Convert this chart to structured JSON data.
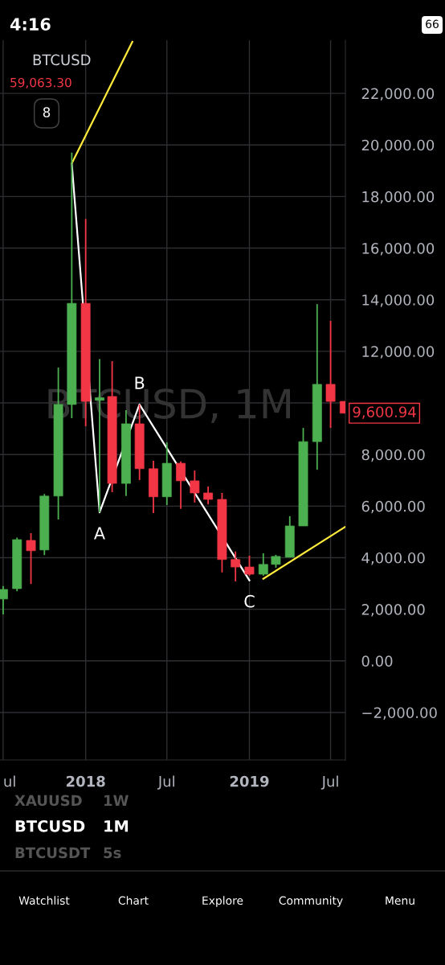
{
  "chart_data": {
    "type": "candlestick",
    "title": "BTCUSD",
    "subtitle": "59,063.30",
    "x": [
      "2017-07",
      "2017-08",
      "2017-09",
      "2017-10",
      "2017-11",
      "2017-12",
      "2018-01",
      "2018-02",
      "2018-03",
      "2018-04",
      "2018-05",
      "2018-06",
      "2018-07",
      "2018-08",
      "2018-09",
      "2018-10",
      "2018-11",
      "2018-12",
      "2019-01",
      "2019-02",
      "2019-03",
      "2019-04",
      "2019-05",
      "2019-06",
      "2019-07",
      "2019-08"
    ],
    "ohlc": [
      [
        2400,
        2900,
        1800,
        2770
      ],
      [
        2800,
        4780,
        2700,
        4700
      ],
      [
        4670,
        4950,
        2980,
        4270
      ],
      [
        4300,
        6470,
        4100,
        6390
      ],
      [
        6390,
        11370,
        5480,
        9940
      ],
      [
        9940,
        19700,
        9410,
        13860
      ],
      [
        13860,
        17130,
        9100,
        10060
      ],
      [
        10100,
        11700,
        5760,
        10200
      ],
      [
        10250,
        11620,
        6540,
        6880
      ],
      [
        6880,
        9720,
        6390,
        9190
      ],
      [
        9190,
        9940,
        7010,
        7450
      ],
      [
        7450,
        7760,
        5730,
        6360
      ],
      [
        6360,
        8470,
        6040,
        7660
      ],
      [
        7660,
        7730,
        5890,
        6980
      ],
      [
        6980,
        7380,
        6140,
        6510
      ],
      [
        6510,
        6760,
        6070,
        6260
      ],
      [
        6260,
        6510,
        3430,
        3930
      ],
      [
        3930,
        4240,
        3080,
        3640
      ],
      [
        3640,
        4080,
        3300,
        3360
      ],
      [
        3360,
        4170,
        3300,
        3740
      ],
      [
        3740,
        4110,
        3610,
        4050
      ],
      [
        4020,
        5610,
        4020,
        5230
      ],
      [
        5230,
        9030,
        5230,
        8500
      ],
      [
        8500,
        13830,
        7410,
        10720
      ],
      [
        10720,
        13180,
        9030,
        10060
      ],
      [
        10060,
        10060,
        9600.94,
        9600.94
      ]
    ],
    "colors": [
      "#4caf50",
      "#4caf50",
      "#f23645",
      "#4caf50",
      "#4caf50",
      "#4caf50",
      "#f23645",
      "#4caf50",
      "#f23645",
      "#4caf50",
      "#f23645",
      "#f23645",
      "#4caf50",
      "#f23645",
      "#f23645",
      "#f23645",
      "#f23645",
      "#f23645",
      "#f23645",
      "#4caf50",
      "#4caf50",
      "#4caf50",
      "#4caf50",
      "#4caf50",
      "#f23645",
      "#f23645"
    ],
    "series": [
      {
        "type": "line",
        "color": "#ffffff",
        "x": [
          "2017-12-01",
          "2018-02-01",
          "2018-05-01",
          "2019-01-01"
        ],
        "values": [
          19280,
          5760,
          9940,
          3120
        ]
      },
      {
        "type": "line",
        "color": "#ffeb3b",
        "x": [
          "2017-12-01",
          "2018-04-15"
        ],
        "values": [
          19280,
          24000
        ]
      },
      {
        "type": "line",
        "color": "#ffeb3b",
        "x": [
          "2019-02-01",
          "2019-08-03"
        ],
        "values": [
          3180,
          5200
        ]
      }
    ],
    "xlim": [
      "2017-06-24",
      "2019-08-03"
    ],
    "xticks": [
      {
        "value": "2017-07",
        "label": "ul"
      },
      {
        "value": "2018-01",
        "label": "2018"
      },
      {
        "value": "2018-07",
        "label": "Jul"
      },
      {
        "value": "2019-01",
        "label": "2019"
      },
      {
        "value": "2019-07",
        "label": "Jul"
      }
    ],
    "ylim": [
      -3840,
      24060
    ],
    "yticks": [
      {
        "value": -2000,
        "label": "−2,000.00"
      },
      {
        "value": 0,
        "label": "0.00"
      },
      {
        "value": 2000,
        "label": "2,000.00"
      },
      {
        "value": 4000,
        "label": "4,000.00"
      },
      {
        "value": 6000,
        "label": "6,000.00"
      },
      {
        "value": 8000,
        "label": "8,000.00"
      },
      {
        "value": 10000,
        "label": null
      },
      {
        "value": 12000,
        "label": "12,000.00"
      },
      {
        "value": 14000,
        "label": "14,000.00"
      },
      {
        "value": 16000,
        "label": "16,000.00"
      },
      {
        "value": 18000,
        "label": "18,000.00"
      },
      {
        "value": 20000,
        "label": "20,000.00"
      },
      {
        "value": 22000,
        "label": "22,000.00"
      }
    ],
    "grid": true,
    "legend": false,
    "annotations": [
      "BTCUSD, 1M",
      "4:16",
      "66",
      "8",
      "XAUUSD",
      "1W",
      "BTCUSD",
      "1M",
      "BTCUSDT",
      "5s",
      "Watchlist",
      "Chart",
      "Explore",
      "Community",
      "Menu",
      {
        "text": "A",
        "x": "2018-02-01",
        "y": 5760
      },
      {
        "text": "B",
        "x": "2018-05-01",
        "y": 9940
      },
      {
        "text": "C",
        "x": "2019-01-01",
        "y": 3120
      },
      "9,600.94"
    ]
  }
}
